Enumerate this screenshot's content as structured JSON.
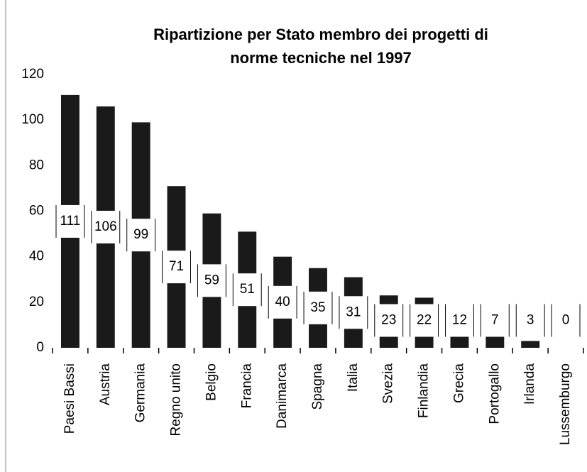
{
  "chart_data": {
    "type": "bar",
    "title": [
      "Ripartizione per Stato membro dei progetti di",
      "norme tecniche nel 1997"
    ],
    "categories": [
      "Paesi Bassi",
      "Austria",
      "Germania",
      "Regno unito",
      "Belgio",
      "Francia",
      "Danimarca",
      "Spagna",
      "Italia",
      "Svezia",
      "Finlandia",
      "Grecia",
      "Portogallo",
      "Irlanda",
      "Lussemburgo"
    ],
    "values": [
      111,
      106,
      99,
      71,
      59,
      51,
      40,
      35,
      31,
      23,
      22,
      12,
      7,
      3,
      0
    ],
    "color": "#1a1a1a",
    "ylim": [
      0,
      120
    ],
    "yticks": [
      0,
      20,
      40,
      60,
      80,
      100,
      120
    ],
    "grid": false
  }
}
